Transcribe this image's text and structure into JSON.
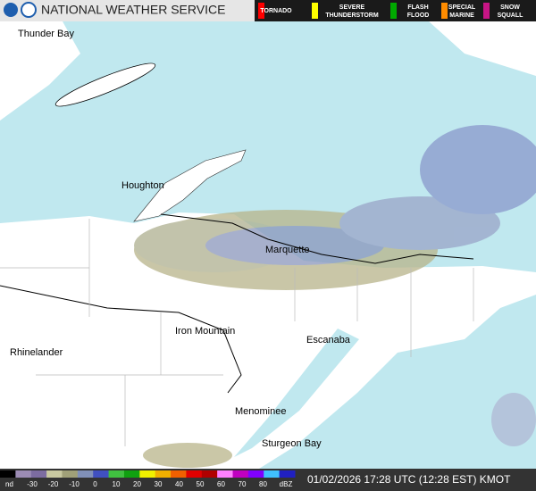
{
  "header": {
    "title": "NATIONAL WEATHER SERVICE"
  },
  "warnings": [
    {
      "lines": [
        "TORNADO"
      ],
      "color": "#ff0000"
    },
    {
      "lines": [
        "SEVERE",
        "THUNDERSTORM"
      ],
      "color": "#ffff00"
    },
    {
      "lines": [
        "FLASH",
        "FLOOD"
      ],
      "color": "#00aa00"
    },
    {
      "lines": [
        "SPECIAL",
        "MARINE"
      ],
      "color": "#ff8c00"
    },
    {
      "lines": [
        "SNOW",
        "SQUALL"
      ],
      "color": "#c71585"
    }
  ],
  "cities": [
    "Thunder Bay",
    "Houghton",
    "Marquette",
    "Iron Mountain",
    "Rhinelander",
    "Escanaba",
    "Menominee",
    "Sturgeon Bay"
  ],
  "scale": {
    "start_label": "nd",
    "ticks": [
      -30,
      -20,
      -10,
      0,
      10,
      20,
      30,
      40,
      50,
      60,
      70,
      80
    ],
    "unit_label": "dBZ",
    "colors": [
      "#000000",
      "#9c8cb4",
      "#7c6ca0",
      "#c8c8a0",
      "#a0a078",
      "#8090b8",
      "#4050c0",
      "#40c040",
      "#10a010",
      "#f0f000",
      "#f0b000",
      "#f06000",
      "#e00000",
      "#b00000",
      "#ff80ff",
      "#c000c0",
      "#8000ff",
      "#40c0ff",
      "#2020c0"
    ]
  },
  "timestamp": "01/02/2026 17:28 UTC (12:28 EST) KMOT"
}
